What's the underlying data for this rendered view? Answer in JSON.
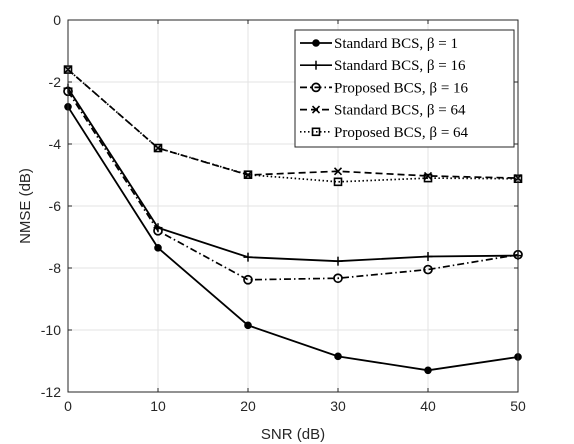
{
  "chart_data": {
    "type": "line",
    "title": "",
    "xlabel": "SNR (dB)",
    "ylabel": "NMSE (dB)",
    "xlim": [
      0,
      50
    ],
    "ylim": [
      -12,
      0
    ],
    "xticks": [
      0,
      10,
      20,
      30,
      40,
      50
    ],
    "yticks": [
      0,
      -2,
      -4,
      -6,
      -8,
      -10,
      -12
    ],
    "grid": true,
    "legend_position": "top-right",
    "x": [
      0,
      10,
      20,
      30,
      40,
      50
    ],
    "series": [
      {
        "name": "Standard BCS, β = 1",
        "values": [
          -2.8,
          -7.35,
          -9.85,
          -10.85,
          -11.3,
          -10.87
        ],
        "line_style": "solid",
        "marker": "dot",
        "color": "#000000"
      },
      {
        "name": "Standard BCS, β = 16",
        "values": [
          -2.2,
          -6.7,
          -7.65,
          -7.78,
          -7.63,
          -7.6
        ],
        "line_style": "solid",
        "marker": "plus",
        "color": "#000000"
      },
      {
        "name": "Proposed BCS, β = 16",
        "values": [
          -2.3,
          -6.8,
          -8.38,
          -8.33,
          -8.05,
          -7.57
        ],
        "line_style": "dash-dot",
        "marker": "circle",
        "color": "#000000"
      },
      {
        "name": "Standard BCS, β = 64",
        "values": [
          -1.6,
          -4.13,
          -5.0,
          -4.88,
          -5.03,
          -5.1
        ],
        "line_style": "dashed",
        "marker": "x",
        "color": "#000000"
      },
      {
        "name": "Proposed BCS, β = 64",
        "values": [
          -1.6,
          -4.13,
          -4.99,
          -5.22,
          -5.1,
          -5.12
        ],
        "line_style": "dotted",
        "marker": "square",
        "color": "#000000"
      }
    ]
  }
}
